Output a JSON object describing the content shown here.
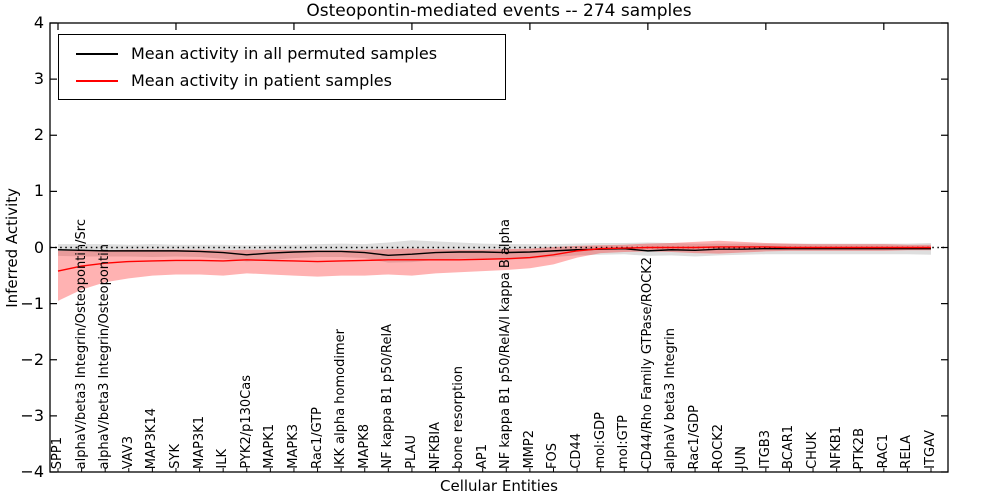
{
  "title": "Osteopontin-mediated events -- 274 samples",
  "axes": {
    "x_label": "Cellular Entities",
    "y_label": "Inferred Activity"
  },
  "legend": {
    "position": "upper left",
    "items": [
      {
        "label": "Mean activity in all permuted samples",
        "color": "#000000"
      },
      {
        "label": "Mean activity in patient samples",
        "color": "#ff0000"
      }
    ]
  },
  "chart_data": {
    "type": "line",
    "title": "Osteopontin-mediated events -- 274 samples",
    "xlabel": "Cellular Entities",
    "ylabel": "Inferred Activity",
    "ylim": [
      -4,
      4
    ],
    "grid": false,
    "zero_line_style": "dotted",
    "y_ticks": [
      4,
      3,
      2,
      1,
      0,
      -1,
      -2,
      -3,
      -4
    ],
    "y_tick_labels": [
      "4",
      "3",
      "2",
      "1",
      "0",
      "−1",
      "−2",
      "−3",
      "−4"
    ],
    "categories": [
      "SPP1",
      "alphaV/beta3 Integrin/Osteopontin/Src",
      "alphaV/beta3 Integrin/Osteopontin",
      "VAV3",
      "MAP3K14",
      "SYK",
      "MAP3K1",
      "ILK",
      "PYK2/p130Cas",
      "MAPK1",
      "MAPK3",
      "Rac1/GTP",
      "IKK alpha homodimer",
      "MAPK8",
      "NF kappa B1 p50/RelA",
      "PLAU",
      "NFKBIA",
      "bone resorption",
      "AP1",
      "NF kappa B1 p50/RelA/I kappa B alpha",
      "MMP2",
      "FOS",
      "CD44",
      "mol:GDP",
      "mol:GTP",
      "CD44/Rho Family GTPase/ROCK2",
      "alphaV beta3 Integrin",
      "Rac1/GDP",
      "ROCK2",
      "JUN",
      "ITGB3",
      "BCAR1",
      "CHUK",
      "NFKB1",
      "PTK2B",
      "RAC1",
      "RELA",
      "ITGAV"
    ],
    "series": [
      {
        "name": "Mean activity in all permuted samples",
        "color": "#000000",
        "band_color": "rgba(0,0,0,0.13)",
        "values": [
          -0.04,
          -0.05,
          -0.06,
          -0.06,
          -0.06,
          -0.06,
          -0.07,
          -0.09,
          -0.13,
          -0.1,
          -0.08,
          -0.07,
          -0.07,
          -0.09,
          -0.14,
          -0.12,
          -0.09,
          -0.08,
          -0.08,
          -0.09,
          -0.08,
          -0.06,
          -0.04,
          -0.03,
          -0.02,
          -0.06,
          -0.04,
          -0.05,
          -0.03,
          -0.03,
          -0.02,
          -0.02,
          -0.02,
          -0.02,
          -0.02,
          -0.02,
          -0.02,
          -0.02
        ],
        "band_upper": [
          0.06,
          0.06,
          0.06,
          0.05,
          0.06,
          0.05,
          0.05,
          0.05,
          0.04,
          0.05,
          0.05,
          0.06,
          0.07,
          0.06,
          0.09,
          0.13,
          0.11,
          0.09,
          0.07,
          0.06,
          0.06,
          0.06,
          0.07,
          0.08,
          0.08,
          0.09,
          0.08,
          0.07,
          0.07,
          0.07,
          0.07,
          0.07,
          0.07,
          0.07,
          0.07,
          0.07,
          0.07,
          0.08
        ],
        "band_lower": [
          -0.15,
          -0.16,
          -0.16,
          -0.16,
          -0.17,
          -0.16,
          -0.17,
          -0.2,
          -0.25,
          -0.22,
          -0.19,
          -0.17,
          -0.17,
          -0.19,
          -0.27,
          -0.26,
          -0.22,
          -0.2,
          -0.2,
          -0.22,
          -0.2,
          -0.17,
          -0.14,
          -0.13,
          -0.12,
          -0.15,
          -0.14,
          -0.16,
          -0.14,
          -0.13,
          -0.12,
          -0.12,
          -0.12,
          -0.12,
          -0.12,
          -0.12,
          -0.12,
          -0.13
        ]
      },
      {
        "name": "Mean activity in patient samples",
        "color": "#ff0000",
        "band_color": "rgba(255,0,0,0.30)",
        "values": [
          -0.42,
          -0.33,
          -0.28,
          -0.25,
          -0.24,
          -0.23,
          -0.23,
          -0.24,
          -0.22,
          -0.23,
          -0.24,
          -0.25,
          -0.24,
          -0.23,
          -0.22,
          -0.22,
          -0.22,
          -0.22,
          -0.21,
          -0.2,
          -0.18,
          -0.13,
          -0.06,
          -0.02,
          -0.01,
          0.0,
          0.0,
          0.0,
          0.01,
          0.01,
          0.01,
          0.0,
          0.0,
          0.0,
          0.0,
          0.0,
          0.0,
          0.0
        ],
        "band_upper": [
          -0.06,
          -0.05,
          -0.05,
          -0.04,
          -0.04,
          -0.04,
          -0.04,
          -0.05,
          -0.04,
          -0.04,
          -0.05,
          -0.05,
          -0.05,
          -0.04,
          -0.03,
          -0.02,
          -0.03,
          -0.04,
          -0.04,
          -0.03,
          -0.02,
          0.01,
          0.03,
          0.04,
          0.05,
          0.07,
          0.08,
          0.1,
          0.12,
          0.1,
          0.08,
          0.07,
          0.06,
          0.06,
          0.06,
          0.06,
          0.05,
          0.05
        ],
        "band_lower": [
          -0.95,
          -0.75,
          -0.62,
          -0.55,
          -0.5,
          -0.48,
          -0.48,
          -0.5,
          -0.46,
          -0.48,
          -0.5,
          -0.52,
          -0.5,
          -0.5,
          -0.48,
          -0.5,
          -0.46,
          -0.44,
          -0.42,
          -0.4,
          -0.37,
          -0.3,
          -0.18,
          -0.1,
          -0.08,
          -0.07,
          -0.08,
          -0.1,
          -0.11,
          -0.09,
          -0.07,
          -0.06,
          -0.06,
          -0.06,
          -0.06,
          -0.06,
          -0.05,
          -0.05
        ]
      }
    ]
  }
}
